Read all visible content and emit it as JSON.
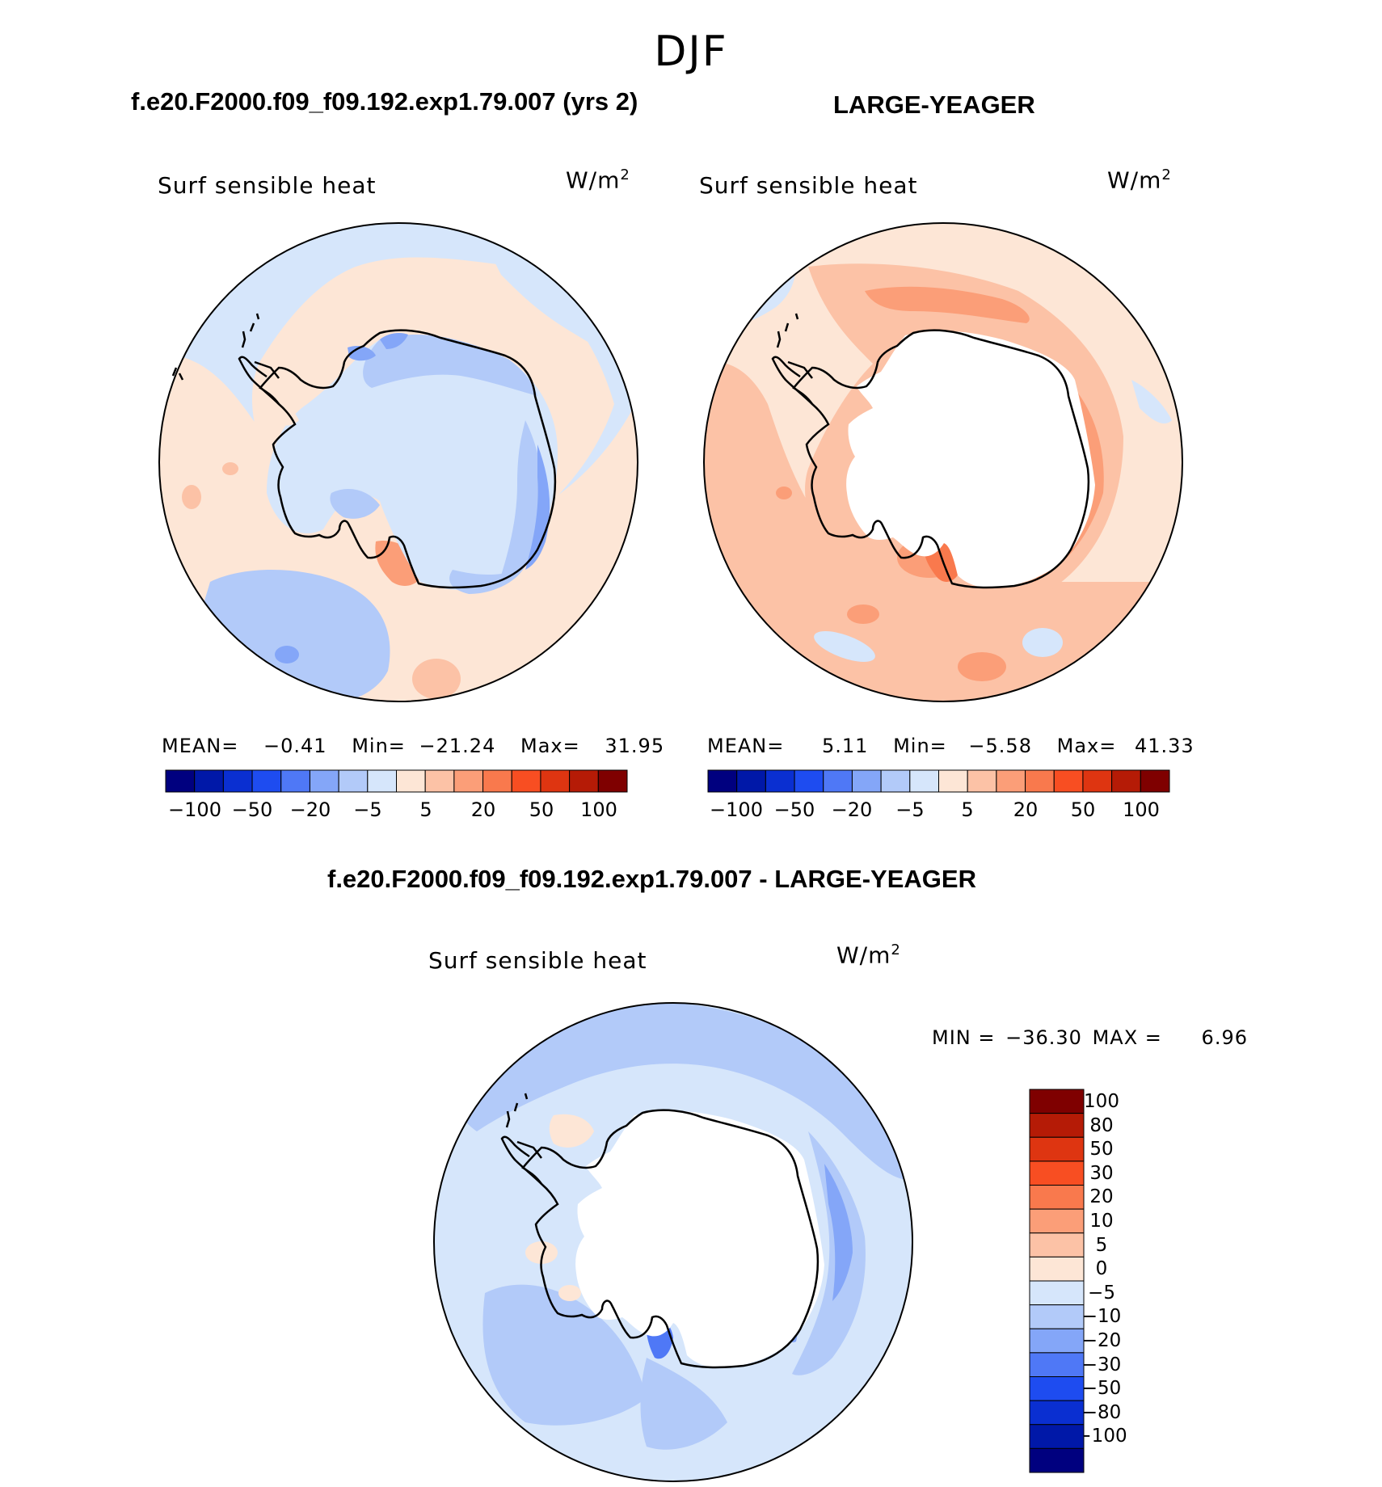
{
  "season": "DJF",
  "panels": [
    {
      "title": "f.e20.F2000.f09_f09.192.exp1.79.007 (yrs 2)",
      "field": "Surf sensible heat",
      "units": "W/m",
      "units_sup": "2",
      "stats": {
        "mean_label": "MEAN=",
        "mean": "−0.41",
        "min_label": "Min=",
        "min": "−21.24",
        "max_label": "Max=",
        "max": "31.95"
      }
    },
    {
      "title": "LARGE-YEAGER",
      "field": "Surf sensible heat",
      "units": "W/m",
      "units_sup": "2",
      "stats": {
        "mean_label": "MEAN=",
        "mean": "5.11",
        "min_label": "Min=",
        "min": "−5.58",
        "max_label": "Max=",
        "max": "41.33"
      }
    },
    {
      "title": "f.e20.F2000.f09_f09.192.exp1.79.007 - LARGE-YEAGER",
      "field": "Surf sensible heat",
      "units": "W/m",
      "units_sup": "2",
      "minmax": {
        "min_label": "MIN =",
        "min": "−36.30",
        "max_label": "MAX =",
        "max": "6.96"
      }
    }
  ],
  "colorbar_top": {
    "colors": [
      "#00007f",
      "#0018a8",
      "#0a2fd1",
      "#1e4cf0",
      "#4f78f6",
      "#84a6f8",
      "#b2caf9",
      "#d6e6fb",
      "#fde6d6",
      "#fcc2a6",
      "#fb9e78",
      "#f9794d",
      "#f84e22",
      "#de3511",
      "#b51b06",
      "#7f0000"
    ],
    "labels": [
      "−100",
      "−50",
      "−20",
      "−5",
      "5",
      "20",
      "50",
      "100"
    ]
  },
  "colorbar_diff": {
    "colors": [
      "#7f0000",
      "#b51b06",
      "#de3511",
      "#f84e22",
      "#f9794d",
      "#fb9e78",
      "#fcc2a6",
      "#fde6d6",
      "#d6e6fb",
      "#b2caf9",
      "#84a6f8",
      "#4f78f6",
      "#1e4cf0",
      "#0a2fd1",
      "#0018a8",
      "#00007f"
    ],
    "labels": [
      "100",
      "80",
      "50",
      "30",
      "20",
      "10",
      "5",
      "0",
      "−5",
      "−10",
      "−20",
      "−30",
      "−50",
      "−80",
      "−100"
    ]
  },
  "map_colors": {
    "neg5": "#d6e6fb",
    "neg10": "#b2caf9",
    "neg20": "#84a6f8",
    "neg50": "#4f78f6",
    "pos5": "#fde6d6",
    "pos10": "#fcc2a6",
    "pos20": "#fb9e78",
    "pos30": "#f9794d",
    "pos50": "#f84e22",
    "land": "#ffffff",
    "outline": "#000000"
  }
}
